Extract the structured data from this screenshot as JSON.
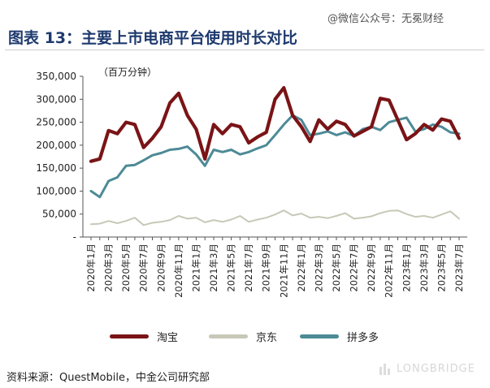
{
  "header": {
    "title": "图表 13：主要上市电商平台使用时长对比",
    "watermark": "@微信公众号：无冕财经"
  },
  "footer": {
    "source": "资料来源：QuestMobile，中金公司研究部",
    "watermark_logo": "LONGBRIDGE"
  },
  "chart_data": {
    "type": "line",
    "title": "",
    "unit_label": "（百万分钟）",
    "ylim": [
      0,
      350000
    ],
    "yticks": [
      0,
      50000,
      100000,
      150000,
      200000,
      250000,
      300000,
      350000
    ],
    "ytick_labels": [
      "-",
      "50,000",
      "100,000",
      "150,000",
      "200,000",
      "250,000",
      "300,000",
      "350,000"
    ],
    "x": [
      "2020年1月",
      "2020年2月",
      "2020年3月",
      "2020年4月",
      "2020年5月",
      "2020年6月",
      "2020年7月",
      "2020年8月",
      "2020年9月",
      "2020年10月",
      "2020年11月",
      "2020年12月",
      "2021年1月",
      "2021年2月",
      "2021年3月",
      "2021年4月",
      "2021年5月",
      "2021年6月",
      "2021年7月",
      "2021年8月",
      "2021年9月",
      "2021年10月",
      "2021年11月",
      "2021年12月",
      "2022年1月",
      "2022年2月",
      "2022年3月",
      "2022年4月",
      "2022年5月",
      "2022年6月",
      "2022年7月",
      "2022年8月",
      "2022年9月",
      "2022年10月",
      "2022年11月",
      "2022年12月",
      "2023年1月",
      "2023年2月",
      "2023年3月",
      "2023年4月",
      "2023年5月",
      "2023年6月",
      "2023年7月"
    ],
    "xtick_labels": [
      "2020年1月",
      "2020年3月",
      "2020年5月",
      "2020年7月",
      "2020年9月",
      "2020年11月",
      "2021年1月",
      "2021年3月",
      "2021年5月",
      "2021年7月",
      "2021年9月",
      "2021年11月",
      "2022年1月",
      "2022年3月",
      "2022年5月",
      "2022年7月",
      "2022年9月",
      "2022年11月",
      "2023年1月",
      "2023年3月",
      "2023年5月",
      "2023年7月"
    ],
    "grid": false,
    "legend_position": "bottom",
    "series": [
      {
        "name": "淘宝",
        "color": "#7a1416",
        "values": [
          165000,
          170000,
          232000,
          225000,
          250000,
          245000,
          195000,
          215000,
          240000,
          292000,
          313000,
          265000,
          235000,
          170000,
          245000,
          225000,
          245000,
          240000,
          205000,
          218000,
          228000,
          300000,
          325000,
          265000,
          240000,
          208000,
          255000,
          235000,
          252000,
          245000,
          220000,
          230000,
          240000,
          302000,
          298000,
          255000,
          212000,
          225000,
          245000,
          233000,
          257000,
          252000,
          215000
        ]
      },
      {
        "name": "京东",
        "color": "#c8c8b8",
        "values": [
          28000,
          29000,
          35000,
          30000,
          35000,
          42000,
          26000,
          31000,
          33000,
          37000,
          46000,
          40000,
          42000,
          32000,
          37000,
          33000,
          38000,
          46000,
          33000,
          38000,
          42000,
          49000,
          58000,
          47000,
          51000,
          42000,
          44000,
          41000,
          46000,
          52000,
          40000,
          42000,
          45000,
          52000,
          57000,
          58000,
          50000,
          44000,
          46000,
          42000,
          49000,
          56000,
          40000
        ]
      },
      {
        "name": "拼多多",
        "color": "#4d8a96",
        "values": [
          100000,
          87000,
          122000,
          130000,
          155000,
          157000,
          167000,
          178000,
          183000,
          190000,
          192000,
          197000,
          180000,
          155000,
          190000,
          185000,
          190000,
          180000,
          185000,
          193000,
          200000,
          222000,
          245000,
          265000,
          255000,
          222000,
          225000,
          230000,
          222000,
          228000,
          220000,
          235000,
          240000,
          233000,
          250000,
          255000,
          260000,
          230000,
          235000,
          245000,
          240000,
          228000,
          225000
        ]
      }
    ]
  }
}
